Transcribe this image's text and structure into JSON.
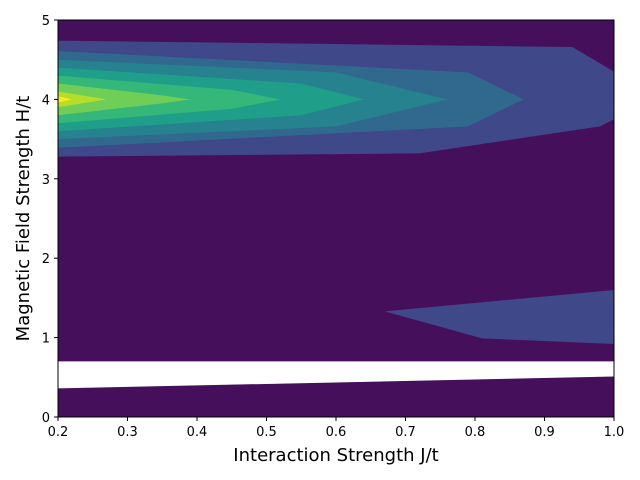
{
  "chart_data": {
    "type": "contourf",
    "xlabel": "Interaction Strength J/t",
    "ylabel": "Magnetic Field Strength H/t",
    "xlim": [
      0.2,
      1.0
    ],
    "ylim": [
      0,
      5
    ],
    "xticks": [
      "0.2",
      "0.3",
      "0.4",
      "0.5",
      "0.6",
      "0.7",
      "0.8",
      "0.9",
      "1.0"
    ],
    "yticks": [
      "0",
      "1",
      "2",
      "3",
      "4",
      "5"
    ],
    "colormap": "viridis",
    "colors": {
      "background": "#450f5c",
      "band_1": "#3f4889",
      "band_2": "#31688e",
      "band_3": "#26828e",
      "band_4": "#1f9e89",
      "band_5": "#35b779",
      "band_6": "#6ece58",
      "band_7": "#b5de2b",
      "band_8": "#fde725",
      "gap": "#ffffff"
    },
    "features": [
      {
        "level": 1,
        "shape": "upper",
        "points": [
          [
            0.2,
            4.74
          ],
          [
            0.94,
            4.66
          ],
          [
            1.0,
            4.35
          ],
          [
            1.0,
            3.75
          ],
          [
            0.98,
            3.66
          ],
          [
            0.72,
            3.32
          ],
          [
            0.2,
            3.28
          ]
        ]
      },
      {
        "level": 1,
        "shape": "lower",
        "points": [
          [
            0.67,
            1.33
          ],
          [
            1.0,
            1.6
          ],
          [
            1.0,
            0.92
          ],
          [
            0.81,
            0.99
          ]
        ]
      },
      {
        "level": 2,
        "shape": "upper",
        "points": [
          [
            0.2,
            4.61
          ],
          [
            0.79,
            4.34
          ],
          [
            0.87,
            4.0
          ],
          [
            0.79,
            3.66
          ],
          [
            0.2,
            3.39
          ]
        ]
      },
      {
        "level": 3,
        "shape": "upper",
        "points": [
          [
            0.2,
            4.5
          ],
          [
            0.6,
            4.34
          ],
          [
            0.76,
            4.0
          ],
          [
            0.6,
            3.66
          ],
          [
            0.2,
            3.5
          ]
        ]
      },
      {
        "level": 4,
        "shape": "upper",
        "points": [
          [
            0.2,
            4.4
          ],
          [
            0.55,
            4.2
          ],
          [
            0.64,
            4.0
          ],
          [
            0.55,
            3.8
          ],
          [
            0.2,
            3.6
          ]
        ]
      },
      {
        "level": 5,
        "shape": "upper",
        "points": [
          [
            0.2,
            4.3
          ],
          [
            0.45,
            4.12
          ],
          [
            0.52,
            4.0
          ],
          [
            0.45,
            3.88
          ],
          [
            0.2,
            3.7
          ]
        ]
      },
      {
        "level": 6,
        "shape": "upper",
        "points": [
          [
            0.2,
            4.2
          ],
          [
            0.35,
            4.05
          ],
          [
            0.39,
            4.0
          ],
          [
            0.35,
            3.95
          ],
          [
            0.2,
            3.8
          ]
        ]
      },
      {
        "level": 7,
        "shape": "upper",
        "points": [
          [
            0.2,
            4.1
          ],
          [
            0.27,
            4.0
          ],
          [
            0.2,
            3.9
          ]
        ]
      },
      {
        "level": 8,
        "shape": "upper",
        "points": [
          [
            0.2,
            4.04
          ],
          [
            0.22,
            4.0
          ],
          [
            0.2,
            3.96
          ]
        ]
      }
    ],
    "gap_region": {
      "points": [
        [
          0.2,
          0.7
        ],
        [
          1.0,
          0.7
        ],
        [
          1.0,
          0.51
        ],
        [
          0.2,
          0.36
        ]
      ]
    },
    "grid": false,
    "legend": "none"
  }
}
